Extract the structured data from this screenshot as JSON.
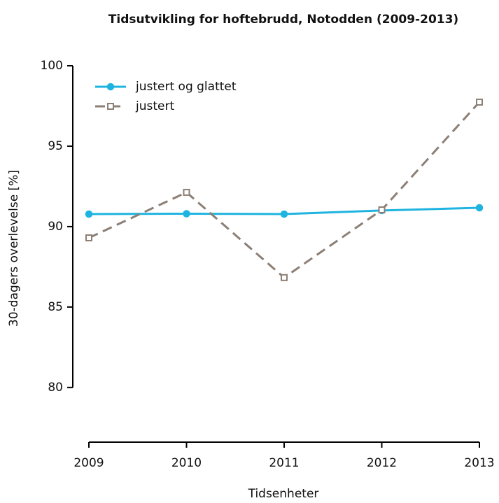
{
  "chart_data": {
    "type": "line",
    "title": "Tidsutvikling for hoftebrudd, Notodden (2009-2013)",
    "x_label": "Tidsenheter",
    "y_label": "30-dagers overlevelse [%]",
    "x": [
      2009,
      2010,
      2011,
      2012,
      2013
    ],
    "xlim": [
      2009,
      2013
    ],
    "xticks": [
      2009,
      2010,
      2011,
      2012,
      2013
    ],
    "ylim": [
      76.6,
      100
    ],
    "yticks": [
      80,
      85,
      90,
      95,
      100
    ],
    "legend": "top-left",
    "series": [
      {
        "name": "justert og glattet",
        "color": "#1fb4e0",
        "marker": "circle",
        "dash": false,
        "values": [
          90.78,
          90.8,
          90.78,
          91.0,
          91.17
        ]
      },
      {
        "name": "justert",
        "color": "#8c7f76",
        "marker": "square",
        "dash": true,
        "values": [
          89.3,
          92.13,
          86.83,
          91.04,
          97.74
        ]
      }
    ]
  }
}
